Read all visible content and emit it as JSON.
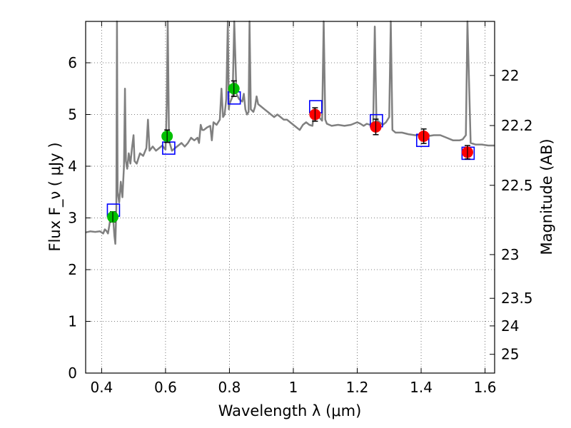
{
  "chart_data": {
    "type": "scatter",
    "xlabel": "Wavelength  λ (μm)",
    "ylabel": "Flux  F_ν  ( μJy )",
    "y2label": "Magnitude (AB)",
    "xlim": [
      0.35,
      1.63
    ],
    "ylim": [
      0,
      6.8
    ],
    "grid": true,
    "x_ticks": [
      "0.4",
      "0.6",
      "0.8",
      "1",
      "1.2",
      "1.4",
      "1.6"
    ],
    "y_ticks": [
      "0",
      "1",
      "2",
      "3",
      "4",
      "5",
      "6"
    ],
    "y2_ticks": [
      {
        "label": "22",
        "value": 22.0
      },
      {
        "label": "22.2",
        "value": 22.2
      },
      {
        "label": "22.5",
        "value": 22.5
      },
      {
        "label": "23",
        "value": 23.0
      },
      {
        "label": "23.5",
        "value": 23.5
      },
      {
        "label": "24",
        "value": 24.0
      },
      {
        "label": "25",
        "value": 25.0
      }
    ],
    "colors": {
      "spectrum": "#808080",
      "green": "#00c000",
      "red": "#ff0000",
      "model_box": "#0000ff",
      "errorbar": "#000000",
      "grid": "#555555"
    },
    "spectrum": [
      [
        0.35,
        2.72
      ],
      [
        0.365,
        2.74
      ],
      [
        0.38,
        2.73
      ],
      [
        0.395,
        2.74
      ],
      [
        0.405,
        2.7
      ],
      [
        0.41,
        2.78
      ],
      [
        0.415,
        2.75
      ],
      [
        0.42,
        2.7
      ],
      [
        0.424,
        2.85
      ],
      [
        0.43,
        3.1
      ],
      [
        0.436,
        3.0
      ],
      [
        0.44,
        2.65
      ],
      [
        0.443,
        2.5
      ],
      [
        0.446,
        3.2
      ],
      [
        0.448,
        6.85
      ],
      [
        0.45,
        3.5
      ],
      [
        0.455,
        3.3
      ],
      [
        0.46,
        3.7
      ],
      [
        0.465,
        3.4
      ],
      [
        0.47,
        4.0
      ],
      [
        0.473,
        5.5
      ],
      [
        0.476,
        4.1
      ],
      [
        0.48,
        3.95
      ],
      [
        0.485,
        4.25
      ],
      [
        0.49,
        4.05
      ],
      [
        0.495,
        4.35
      ],
      [
        0.5,
        4.6
      ],
      [
        0.503,
        4.1
      ],
      [
        0.51,
        4.05
      ],
      [
        0.52,
        4.25
      ],
      [
        0.53,
        4.2
      ],
      [
        0.54,
        4.35
      ],
      [
        0.545,
        4.9
      ],
      [
        0.55,
        4.3
      ],
      [
        0.56,
        4.38
      ],
      [
        0.57,
        4.3
      ],
      [
        0.58,
        4.35
      ],
      [
        0.59,
        4.4
      ],
      [
        0.6,
        4.32
      ],
      [
        0.604,
        5.2
      ],
      [
        0.607,
        6.85
      ],
      [
        0.611,
        4.5
      ],
      [
        0.62,
        4.3
      ],
      [
        0.63,
        4.35
      ],
      [
        0.64,
        4.4
      ],
      [
        0.65,
        4.45
      ],
      [
        0.66,
        4.38
      ],
      [
        0.67,
        4.45
      ],
      [
        0.68,
        4.55
      ],
      [
        0.69,
        4.5
      ],
      [
        0.7,
        4.55
      ],
      [
        0.705,
        4.45
      ],
      [
        0.71,
        4.8
      ],
      [
        0.715,
        4.7
      ],
      [
        0.72,
        4.7
      ],
      [
        0.73,
        4.75
      ],
      [
        0.74,
        4.78
      ],
      [
        0.745,
        4.5
      ],
      [
        0.75,
        4.85
      ],
      [
        0.76,
        4.8
      ],
      [
        0.77,
        4.9
      ],
      [
        0.775,
        5.5
      ],
      [
        0.78,
        4.95
      ],
      [
        0.785,
        5.0
      ],
      [
        0.79,
        5.3
      ],
      [
        0.795,
        6.85
      ],
      [
        0.798,
        5.1
      ],
      [
        0.8,
        5.2
      ],
      [
        0.81,
        5.35
      ],
      [
        0.815,
        6.85
      ],
      [
        0.822,
        5.4
      ],
      [
        0.83,
        5.3
      ],
      [
        0.84,
        5.25
      ],
      [
        0.845,
        5.4
      ],
      [
        0.85,
        5.1
      ],
      [
        0.855,
        5.0
      ],
      [
        0.86,
        5.05
      ],
      [
        0.863,
        6.85
      ],
      [
        0.867,
        5.1
      ],
      [
        0.875,
        5.05
      ],
      [
        0.88,
        5.15
      ],
      [
        0.885,
        5.35
      ],
      [
        0.89,
        5.2
      ],
      [
        0.9,
        5.15
      ],
      [
        0.91,
        5.1
      ],
      [
        0.92,
        5.05
      ],
      [
        0.93,
        5.0
      ],
      [
        0.94,
        4.95
      ],
      [
        0.95,
        5.0
      ],
      [
        0.96,
        4.95
      ],
      [
        0.97,
        4.9
      ],
      [
        0.98,
        4.9
      ],
      [
        0.99,
        4.85
      ],
      [
        1.0,
        4.8
      ],
      [
        1.01,
        4.75
      ],
      [
        1.02,
        4.7
      ],
      [
        1.03,
        4.8
      ],
      [
        1.04,
        4.85
      ],
      [
        1.05,
        4.8
      ],
      [
        1.06,
        4.78
      ],
      [
        1.065,
        5.1
      ],
      [
        1.07,
        4.9
      ],
      [
        1.08,
        4.95
      ],
      [
        1.09,
        4.88
      ],
      [
        1.095,
        6.85
      ],
      [
        1.1,
        4.9
      ],
      [
        1.105,
        4.82
      ],
      [
        1.12,
        4.78
      ],
      [
        1.14,
        4.8
      ],
      [
        1.16,
        4.78
      ],
      [
        1.18,
        4.8
      ],
      [
        1.2,
        4.85
      ],
      [
        1.21,
        4.82
      ],
      [
        1.22,
        4.78
      ],
      [
        1.23,
        4.82
      ],
      [
        1.24,
        4.8
      ],
      [
        1.25,
        4.85
      ],
      [
        1.255,
        6.7
      ],
      [
        1.26,
        4.9
      ],
      [
        1.27,
        4.85
      ],
      [
        1.28,
        4.8
      ],
      [
        1.29,
        4.85
      ],
      [
        1.3,
        4.95
      ],
      [
        1.305,
        6.85
      ],
      [
        1.31,
        4.7
      ],
      [
        1.32,
        4.65
      ],
      [
        1.34,
        4.65
      ],
      [
        1.36,
        4.62
      ],
      [
        1.38,
        4.6
      ],
      [
        1.4,
        4.6
      ],
      [
        1.42,
        4.58
      ],
      [
        1.44,
        4.6
      ],
      [
        1.46,
        4.6
      ],
      [
        1.48,
        4.55
      ],
      [
        1.5,
        4.5
      ],
      [
        1.52,
        4.5
      ],
      [
        1.53,
        4.52
      ],
      [
        1.54,
        4.6
      ],
      [
        1.545,
        6.85
      ],
      [
        1.555,
        4.45
      ],
      [
        1.57,
        4.42
      ],
      [
        1.59,
        4.42
      ],
      [
        1.61,
        4.4
      ],
      [
        1.63,
        4.4
      ]
    ],
    "observed_points": [
      {
        "x": 0.435,
        "y": 3.02,
        "err": 0.1,
        "color": "green"
      },
      {
        "x": 0.605,
        "y": 4.58,
        "err": 0.12,
        "color": "green"
      },
      {
        "x": 0.814,
        "y": 5.5,
        "err": 0.15,
        "color": "green"
      },
      {
        "x": 1.068,
        "y": 5.0,
        "err": 0.13,
        "color": "red"
      },
      {
        "x": 1.258,
        "y": 4.76,
        "err": 0.15,
        "color": "red"
      },
      {
        "x": 1.408,
        "y": 4.58,
        "err": 0.14,
        "color": "red"
      },
      {
        "x": 1.545,
        "y": 4.27,
        "err": 0.13,
        "color": "red"
      }
    ],
    "model_points": [
      {
        "x": 0.437,
        "y": 3.15
      },
      {
        "x": 0.61,
        "y": 4.35
      },
      {
        "x": 0.815,
        "y": 5.32
      },
      {
        "x": 1.07,
        "y": 5.15
      },
      {
        "x": 1.26,
        "y": 4.88
      },
      {
        "x": 1.405,
        "y": 4.5
      },
      {
        "x": 1.547,
        "y": 4.25
      }
    ]
  }
}
